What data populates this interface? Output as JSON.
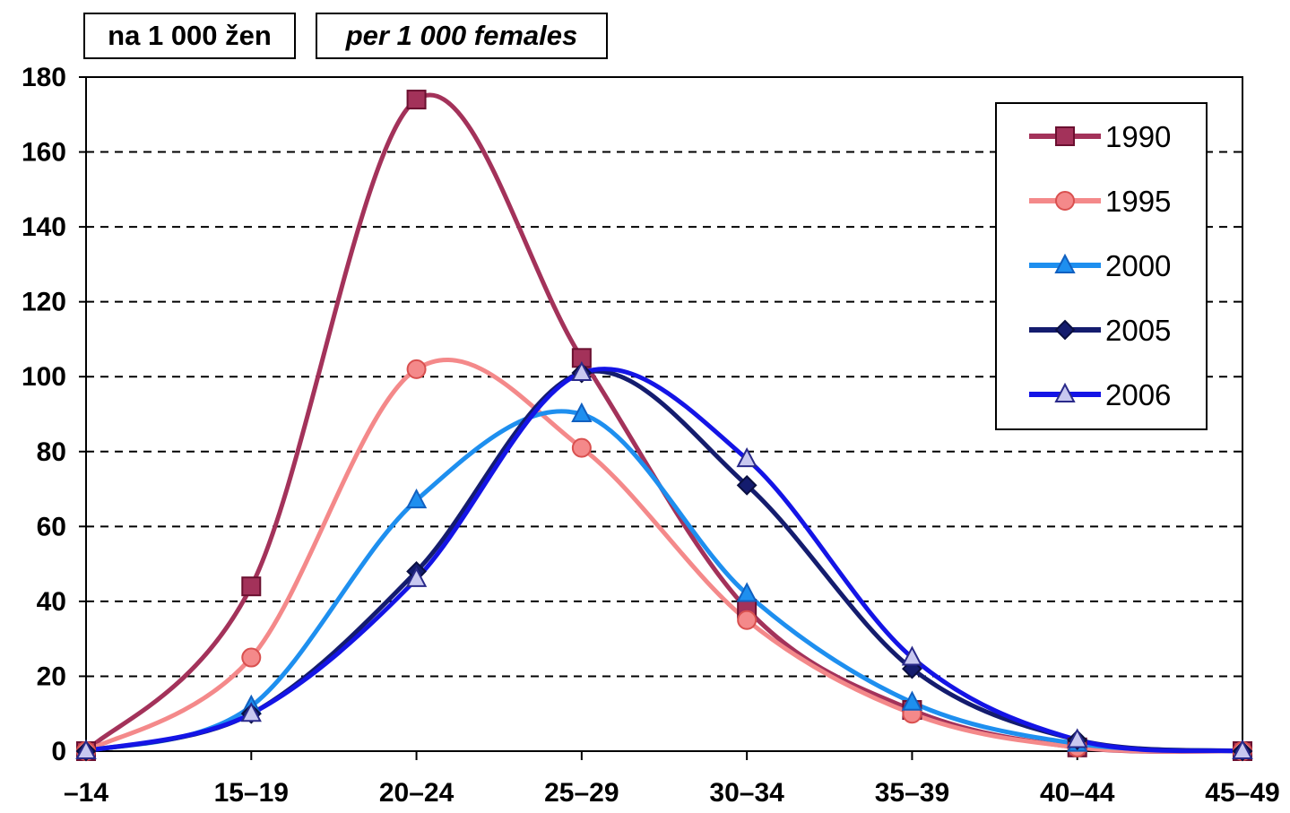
{
  "unit_labels": {
    "local": "na 1 000 žen",
    "english": "per 1 000 females"
  },
  "chart_data": {
    "type": "line",
    "title": "",
    "xlabel": "",
    "ylabel": "",
    "categories": [
      "–14",
      "15–19",
      "20–24",
      "25–29",
      "30–34",
      "35–39",
      "40–44",
      "45–49"
    ],
    "ylim": [
      0,
      180
    ],
    "yticks": [
      0,
      20,
      40,
      60,
      80,
      100,
      120,
      140,
      160,
      180
    ],
    "grid": "horizontal dashed",
    "legend_position": "top-right",
    "series": [
      {
        "name": "1990",
        "color": "#a3325a",
        "marker": "square",
        "values": [
          0,
          44,
          174,
          105,
          38,
          11,
          1,
          0
        ]
      },
      {
        "name": "1995",
        "color": "#f4898a",
        "marker": "circle",
        "values": [
          0,
          25,
          102,
          81,
          35,
          10,
          1,
          0
        ]
      },
      {
        "name": "2000",
        "color": "#1e8fef",
        "marker": "triangle",
        "values": [
          0,
          12,
          67,
          90,
          42,
          13,
          2,
          0
        ]
      },
      {
        "name": "2005",
        "color": "#141c6e",
        "marker": "diamond",
        "values": [
          0,
          10,
          48,
          101,
          71,
          22,
          3,
          0
        ]
      },
      {
        "name": "2006",
        "color": "#1414e6",
        "marker": "triangle-open",
        "values": [
          0,
          10,
          46,
          101,
          78,
          25,
          3,
          0
        ]
      }
    ]
  }
}
